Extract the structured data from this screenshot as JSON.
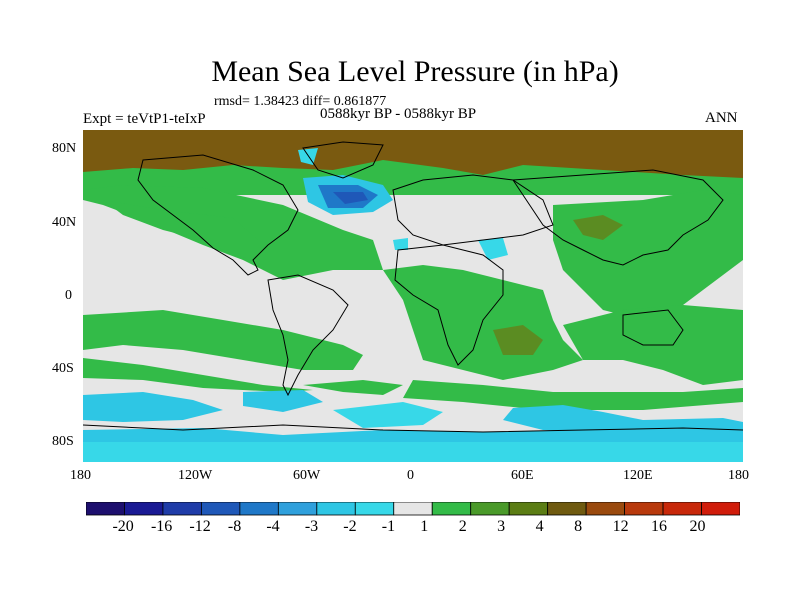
{
  "title": "Mean Sea Level Pressure (in hPa)",
  "stats": "rmsd= 1.38423 diff= 0.861877",
  "experiment": "Expt = teVtP1-teIxP",
  "period": "0588kyr BP - 0588kyr BP",
  "season": "ANN",
  "lat_labels": [
    "80N",
    "40N",
    "0",
    "40S",
    "80S"
  ],
  "lon_labels": [
    "180",
    "120W",
    "60W",
    "0",
    "60E",
    "120E",
    "180"
  ],
  "colorbar": {
    "labels": [
      "-20",
      "-16",
      "-12",
      "-8",
      "-4",
      "-3",
      "-2",
      "-1",
      "1",
      "2",
      "3",
      "4",
      "8",
      "12",
      "16",
      "20"
    ],
    "colors": [
      "#1d0f6e",
      "#1a1a94",
      "#1f3ca8",
      "#1f58b8",
      "#1f78c8",
      "#2fa0dc",
      "#2ec6e4",
      "#37d8e8",
      "#e6e6e6",
      "#33bb48",
      "#4a9a2a",
      "#5b7d14",
      "#6f5a10",
      "#9a4a0e",
      "#b8390c",
      "#c8280a",
      "#d01c0a"
    ]
  }
}
